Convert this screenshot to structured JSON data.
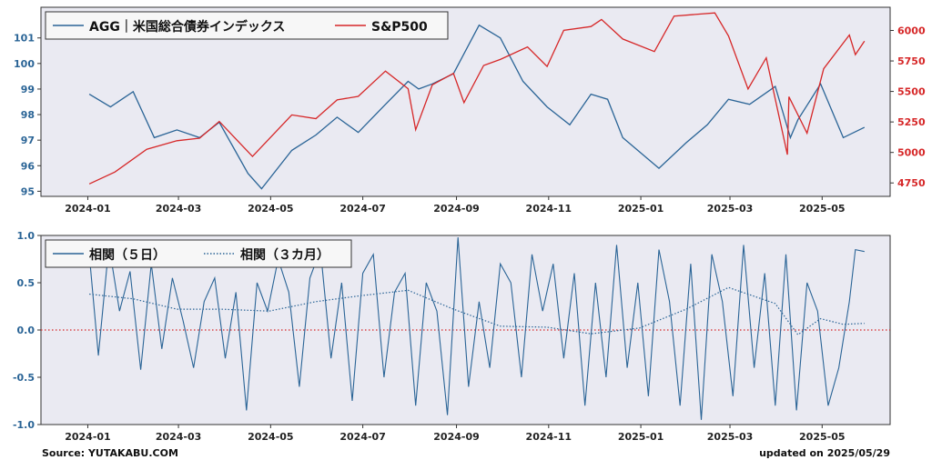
{
  "footer": {
    "source": "Source: YUTAKABU.COM",
    "updated": "updated on 2025/05/29"
  },
  "colors": {
    "agg": "#2a6496",
    "sp500": "#d62728",
    "zero_line": "#d62728",
    "plot_bg": "#eaeaf2",
    "left_tick": "#2a6496",
    "right_tick": "#d62728"
  },
  "chart_data": [
    {
      "type": "line",
      "x_ticks": [
        "2024-01",
        "2024-03",
        "2024-05",
        "2024-07",
        "2024-09",
        "2024-11",
        "2025-01",
        "2025-03",
        "2025-05"
      ],
      "y_left_ticks": [
        95,
        96,
        97,
        98,
        99,
        100,
        101
      ],
      "y_right_ticks": [
        4750,
        5000,
        5250,
        5500,
        5750,
        6000
      ],
      "ylim_left": [
        94.8,
        102.2
      ],
      "ylim_right": [
        4640,
        6190
      ],
      "legend_position": "top-left",
      "series": [
        {
          "name": "AGG｜米国総合債券インデックス",
          "axis": "left",
          "color": "#2a6496",
          "points": [
            [
              "2024-01-02",
              98.8
            ],
            [
              "2024-01-16",
              98.3
            ],
            [
              "2024-01-31",
              98.9
            ],
            [
              "2024-02-14",
              97.1
            ],
            [
              "2024-02-29",
              97.4
            ],
            [
              "2024-03-15",
              97.1
            ],
            [
              "2024-03-28",
              97.7
            ],
            [
              "2024-04-16",
              95.7
            ],
            [
              "2024-04-25",
              95.1
            ],
            [
              "2024-05-15",
              96.6
            ],
            [
              "2024-05-31",
              97.2
            ],
            [
              "2024-06-14",
              97.9
            ],
            [
              "2024-06-28",
              97.3
            ],
            [
              "2024-07-16",
              98.4
            ],
            [
              "2024-07-31",
              99.3
            ],
            [
              "2024-08-07",
              99.0
            ],
            [
              "2024-08-16",
              99.2
            ],
            [
              "2024-08-30",
              99.6
            ],
            [
              "2024-09-16",
              101.5
            ],
            [
              "2024-09-30",
              101.0
            ],
            [
              "2024-10-15",
              99.3
            ],
            [
              "2024-10-31",
              98.3
            ],
            [
              "2024-11-15",
              97.6
            ],
            [
              "2024-11-29",
              98.8
            ],
            [
              "2024-12-10",
              98.6
            ],
            [
              "2024-12-20",
              97.1
            ],
            [
              "2025-01-13",
              95.9
            ],
            [
              "2025-01-31",
              96.9
            ],
            [
              "2025-02-14",
              97.6
            ],
            [
              "2025-02-28",
              98.6
            ],
            [
              "2025-03-14",
              98.4
            ],
            [
              "2025-03-31",
              99.1
            ],
            [
              "2025-04-10",
              97.1
            ],
            [
              "2025-04-15",
              97.8
            ],
            [
              "2025-04-30",
              99.2
            ],
            [
              "2025-05-15",
              97.1
            ],
            [
              "2025-05-29",
              97.5
            ]
          ]
        },
        {
          "name": "S&P500",
          "axis": "right",
          "color": "#d62728",
          "points": [
            [
              "2024-01-02",
              4742
            ],
            [
              "2024-01-19",
              4840
            ],
            [
              "2024-02-09",
              5026
            ],
            [
              "2024-02-29",
              5096
            ],
            [
              "2024-03-15",
              5117
            ],
            [
              "2024-03-28",
              5254
            ],
            [
              "2024-04-19",
              4967
            ],
            [
              "2024-05-15",
              5308
            ],
            [
              "2024-05-31",
              5277
            ],
            [
              "2024-06-14",
              5431
            ],
            [
              "2024-06-28",
              5460
            ],
            [
              "2024-07-16",
              5667
            ],
            [
              "2024-07-31",
              5522
            ],
            [
              "2024-08-05",
              5186
            ],
            [
              "2024-08-16",
              5554
            ],
            [
              "2024-08-30",
              5648
            ],
            [
              "2024-09-06",
              5408
            ],
            [
              "2024-09-19",
              5713
            ],
            [
              "2024-09-30",
              5762
            ],
            [
              "2024-10-18",
              5864
            ],
            [
              "2024-10-31",
              5705
            ],
            [
              "2024-11-11",
              6001
            ],
            [
              "2024-11-29",
              6032
            ],
            [
              "2024-12-06",
              6090
            ],
            [
              "2024-12-20",
              5930
            ],
            [
              "2025-01-10",
              5827
            ],
            [
              "2025-01-23",
              6118
            ],
            [
              "2025-02-19",
              6144
            ],
            [
              "2025-02-28",
              5955
            ],
            [
              "2025-03-13",
              5521
            ],
            [
              "2025-03-25",
              5776
            ],
            [
              "2025-04-08",
              4982
            ],
            [
              "2025-04-09",
              5457
            ],
            [
              "2025-04-21",
              5158
            ],
            [
              "2025-05-02",
              5686
            ],
            [
              "2025-05-19",
              5963
            ],
            [
              "2025-05-23",
              5802
            ],
            [
              "2025-05-29",
              5912
            ]
          ]
        }
      ]
    },
    {
      "type": "line",
      "x_ticks": [
        "2024-01",
        "2024-03",
        "2024-05",
        "2024-07",
        "2024-09",
        "2024-11",
        "2025-01",
        "2025-03",
        "2025-05"
      ],
      "y_ticks": [
        -1.0,
        -0.5,
        0.0,
        0.5,
        1.0
      ],
      "ylim": [
        -1.0,
        1.0
      ],
      "legend_position": "top-left",
      "reference_line": 0.0,
      "series": [
        {
          "name": "相関（５日）",
          "color": "#2a6496",
          "style": "solid",
          "points": [
            [
              "2024-01-02",
              0.8
            ],
            [
              "2024-01-08",
              -0.27
            ],
            [
              "2024-01-15",
              0.9
            ],
            [
              "2024-01-22",
              0.2
            ],
            [
              "2024-01-29",
              0.62
            ],
            [
              "2024-02-05",
              -0.42
            ],
            [
              "2024-02-12",
              0.7
            ],
            [
              "2024-02-19",
              -0.2
            ],
            [
              "2024-02-26",
              0.55
            ],
            [
              "2024-03-04",
              0.1
            ],
            [
              "2024-03-11",
              -0.4
            ],
            [
              "2024-03-18",
              0.3
            ],
            [
              "2024-03-25",
              0.55
            ],
            [
              "2024-04-01",
              -0.3
            ],
            [
              "2024-04-08",
              0.4
            ],
            [
              "2024-04-15",
              -0.85
            ],
            [
              "2024-04-22",
              0.5
            ],
            [
              "2024-04-29",
              0.2
            ],
            [
              "2024-05-06",
              0.75
            ],
            [
              "2024-05-13",
              0.4
            ],
            [
              "2024-05-20",
              -0.6
            ],
            [
              "2024-05-27",
              0.55
            ],
            [
              "2024-06-03",
              0.85
            ],
            [
              "2024-06-10",
              -0.3
            ],
            [
              "2024-06-17",
              0.5
            ],
            [
              "2024-06-24",
              -0.75
            ],
            [
              "2024-07-01",
              0.6
            ],
            [
              "2024-07-08",
              0.8
            ],
            [
              "2024-07-15",
              -0.5
            ],
            [
              "2024-07-22",
              0.4
            ],
            [
              "2024-07-29",
              0.6
            ],
            [
              "2024-08-05",
              -0.8
            ],
            [
              "2024-08-12",
              0.5
            ],
            [
              "2024-08-19",
              0.2
            ],
            [
              "2024-08-26",
              -0.9
            ],
            [
              "2024-09-02",
              0.98
            ],
            [
              "2024-09-09",
              -0.6
            ],
            [
              "2024-09-16",
              0.3
            ],
            [
              "2024-09-23",
              -0.4
            ],
            [
              "2024-09-30",
              0.7
            ],
            [
              "2024-10-07",
              0.5
            ],
            [
              "2024-10-14",
              -0.5
            ],
            [
              "2024-10-21",
              0.8
            ],
            [
              "2024-10-28",
              0.2
            ],
            [
              "2024-11-04",
              0.7
            ],
            [
              "2024-11-11",
              -0.3
            ],
            [
              "2024-11-18",
              0.6
            ],
            [
              "2024-11-25",
              -0.8
            ],
            [
              "2024-12-02",
              0.5
            ],
            [
              "2024-12-09",
              -0.5
            ],
            [
              "2024-12-16",
              0.9
            ],
            [
              "2024-12-23",
              -0.4
            ],
            [
              "2024-12-30",
              0.5
            ],
            [
              "2025-01-06",
              -0.7
            ],
            [
              "2025-01-13",
              0.85
            ],
            [
              "2025-01-20",
              0.3
            ],
            [
              "2025-01-27",
              -0.8
            ],
            [
              "2025-02-03",
              0.7
            ],
            [
              "2025-02-10",
              -0.95
            ],
            [
              "2025-02-17",
              0.8
            ],
            [
              "2025-02-24",
              0.3
            ],
            [
              "2025-03-03",
              -0.7
            ],
            [
              "2025-03-10",
              0.9
            ],
            [
              "2025-03-17",
              -0.4
            ],
            [
              "2025-03-24",
              0.6
            ],
            [
              "2025-03-31",
              -0.8
            ],
            [
              "2025-04-07",
              0.8
            ],
            [
              "2025-04-14",
              -0.85
            ],
            [
              "2025-04-21",
              0.5
            ],
            [
              "2025-04-28",
              0.2
            ],
            [
              "2025-05-05",
              -0.8
            ],
            [
              "2025-05-12",
              -0.4
            ],
            [
              "2025-05-19",
              0.3
            ],
            [
              "2025-05-23",
              0.85
            ],
            [
              "2025-05-29",
              0.83
            ]
          ]
        },
        {
          "name": "相関（３カ月）",
          "color": "#2a6496",
          "style": "dotted",
          "points": [
            [
              "2024-01-02",
              0.38
            ],
            [
              "2024-01-31",
              0.33
            ],
            [
              "2024-02-29",
              0.22
            ],
            [
              "2024-03-29",
              0.22
            ],
            [
              "2024-04-30",
              0.2
            ],
            [
              "2024-05-31",
              0.3
            ],
            [
              "2024-06-28",
              0.36
            ],
            [
              "2024-07-31",
              0.42
            ],
            [
              "2024-08-30",
              0.22
            ],
            [
              "2024-09-30",
              0.04
            ],
            [
              "2024-10-31",
              0.03
            ],
            [
              "2024-11-29",
              -0.04
            ],
            [
              "2024-12-31",
              0.02
            ],
            [
              "2025-01-31",
              0.22
            ],
            [
              "2025-02-28",
              0.45
            ],
            [
              "2025-03-31",
              0.28
            ],
            [
              "2025-04-15",
              -0.05
            ],
            [
              "2025-04-30",
              0.12
            ],
            [
              "2025-05-15",
              0.06
            ],
            [
              "2025-05-29",
              0.07
            ]
          ]
        }
      ]
    }
  ]
}
